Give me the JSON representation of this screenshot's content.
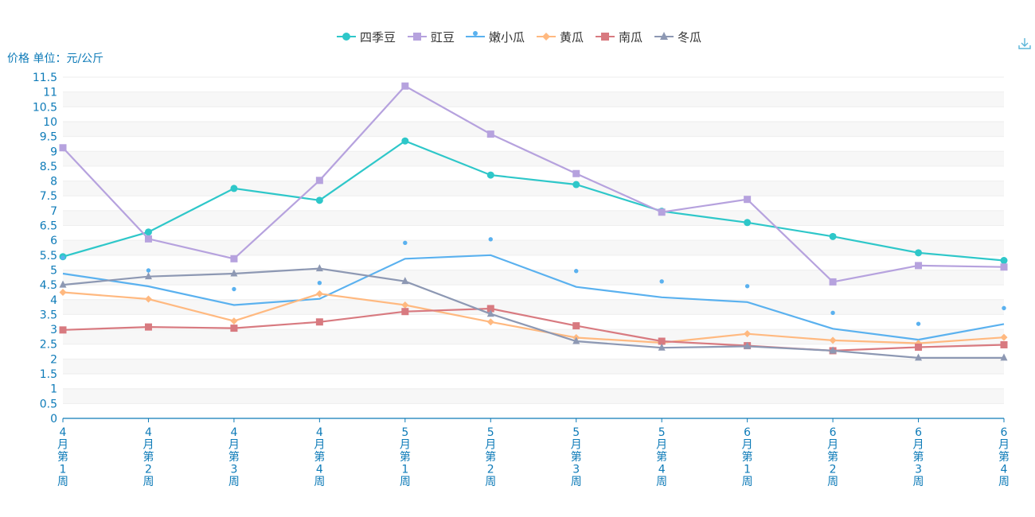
{
  "toolbar": {
    "download_icon": "download-icon"
  },
  "chart_data": {
    "type": "line",
    "ylabel": "价格 单位：元/公斤",
    "ylim": [
      0,
      11.5
    ],
    "ytick_step": 0.5,
    "y_tick_labels": [
      "0",
      "0.5",
      "1",
      "1.5",
      "2",
      "2.5",
      "3",
      "3.5",
      "4",
      "4.5",
      "5",
      "5.5",
      "6",
      "6.5",
      "7",
      "7.5",
      "8",
      "8.5",
      "9",
      "9.5",
      "10",
      "10.5",
      "11",
      "11.5"
    ],
    "categories": [
      "4月第1周",
      "4月第2周",
      "4月第3周",
      "4月第4周",
      "5月第1周",
      "5月第2周",
      "5月第3周",
      "5月第4周",
      "6月第1周",
      "6月第2周",
      "6月第3周",
      "6月第4周"
    ],
    "legend_position": "top-center",
    "series": [
      {
        "name": "四季豆",
        "color": "#2ec7c9",
        "marker": "circle",
        "values": [
          5.45,
          6.28,
          7.75,
          7.35,
          9.35,
          8.2,
          7.88,
          6.98,
          6.6,
          6.13,
          5.58,
          5.32
        ]
      },
      {
        "name": "豇豆",
        "color": "#b6a2de",
        "marker": "square",
        "values": [
          9.12,
          6.05,
          5.38,
          8.02,
          11.2,
          9.58,
          8.25,
          6.95,
          7.38,
          4.6,
          5.15,
          5.1
        ]
      },
      {
        "name": "嫩小瓜",
        "color": "#5ab1ef",
        "marker": "pin",
        "values": [
          4.88,
          4.45,
          3.82,
          4.03,
          5.38,
          5.5,
          4.43,
          4.08,
          3.92,
          3.02,
          2.65,
          3.18
        ]
      },
      {
        "name": "黄瓜",
        "color": "#ffb980",
        "marker": "diamond",
        "values": [
          4.25,
          4.02,
          3.28,
          4.2,
          3.82,
          3.25,
          2.72,
          2.55,
          2.85,
          2.63,
          2.53,
          2.73
        ]
      },
      {
        "name": "南瓜",
        "color": "#d87a80",
        "marker": "square",
        "values": [
          2.98,
          3.08,
          3.04,
          3.25,
          3.6,
          3.7,
          3.12,
          2.6,
          2.45,
          2.28,
          2.4,
          2.48
        ]
      },
      {
        "name": "冬瓜",
        "color": "#8d98b3",
        "marker": "triangle",
        "values": [
          4.5,
          4.78,
          4.88,
          5.05,
          4.62,
          3.52,
          2.6,
          2.38,
          2.43,
          2.28,
          2.04,
          2.04
        ]
      }
    ]
  }
}
